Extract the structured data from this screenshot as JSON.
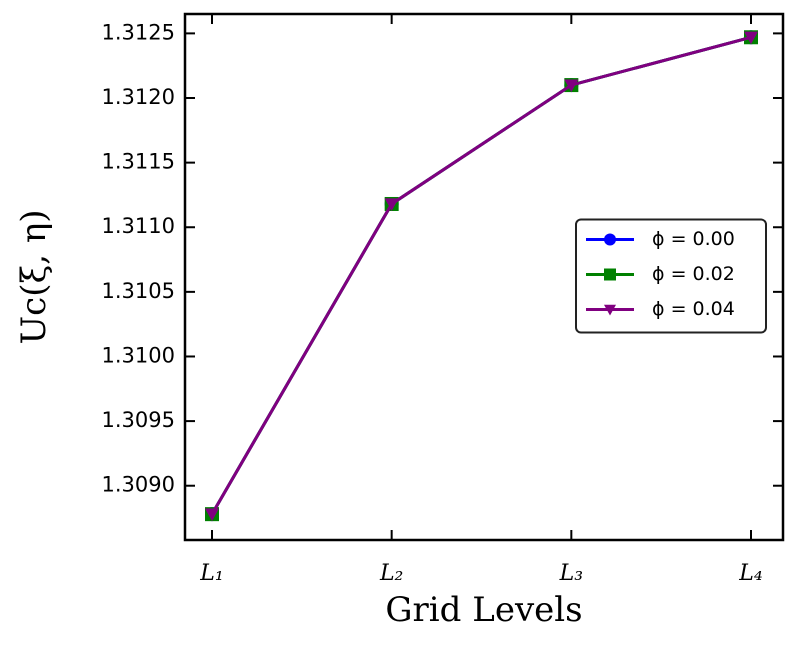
{
  "chart_data": {
    "type": "line",
    "x_label": "Grid Levels",
    "y_label": "Uc(ξ, η)",
    "categories": [
      "L₁",
      "L₂",
      "L₃",
      "L₄"
    ],
    "series": [
      {
        "name": "ϕ = 0.00",
        "color": "#0000ff",
        "marker": "circle",
        "values": [
          1.30878,
          1.31118,
          1.3121,
          1.31247
        ]
      },
      {
        "name": "ϕ = 0.02",
        "color": "#008000",
        "marker": "square",
        "values": [
          1.30878,
          1.31118,
          1.3121,
          1.31247
        ]
      },
      {
        "name": "ϕ = 0.04",
        "color": "#800080",
        "marker": "triangle-down",
        "values": [
          1.30878,
          1.31118,
          1.3121,
          1.31247
        ]
      }
    ],
    "ylim": [
      1.30858,
      1.31265
    ],
    "yticks": [
      {
        "value": 1.309,
        "label": "1.3090"
      },
      {
        "value": 1.3095,
        "label": "1.3095"
      },
      {
        "value": 1.31,
        "label": "1.3100"
      },
      {
        "value": 1.3105,
        "label": "1.3105"
      },
      {
        "value": 1.311,
        "label": "1.3110"
      },
      {
        "value": 1.3115,
        "label": "1.3115"
      },
      {
        "value": 1.312,
        "label": "1.3120"
      },
      {
        "value": 1.3125,
        "label": "1.3125"
      }
    ],
    "legend": "center right"
  }
}
